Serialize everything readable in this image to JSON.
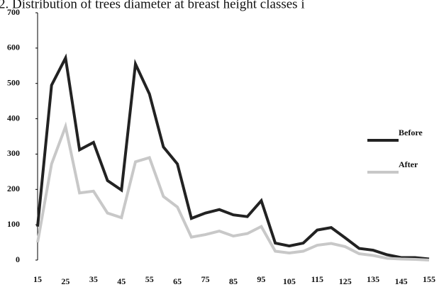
{
  "chart_data": {
    "type": "line",
    "title": "2. Distribution of trees diameter at breast height classes i",
    "x": [
      15,
      20,
      25,
      30,
      35,
      40,
      45,
      50,
      55,
      60,
      65,
      70,
      75,
      80,
      85,
      90,
      95,
      100,
      105,
      110,
      115,
      120,
      125,
      130,
      135,
      140,
      145,
      150,
      155
    ],
    "series": [
      {
        "name": "Before",
        "color": "#222222",
        "values": [
          95,
          495,
          572,
          312,
          333,
          225,
          198,
          555,
          470,
          320,
          272,
          118,
          133,
          143,
          128,
          123,
          168,
          48,
          40,
          48,
          85,
          92,
          63,
          33,
          28,
          15,
          7,
          7,
          3
        ]
      },
      {
        "name": "After",
        "color": "#c8c8c8",
        "values": [
          50,
          272,
          378,
          190,
          195,
          133,
          120,
          278,
          290,
          180,
          150,
          65,
          72,
          82,
          68,
          75,
          95,
          25,
          20,
          25,
          42,
          47,
          38,
          18,
          13,
          5,
          3,
          2,
          0
        ]
      }
    ],
    "xlim": [
      15,
      155
    ],
    "xticks": [
      15,
      25,
      35,
      45,
      55,
      65,
      75,
      85,
      95,
      105,
      115,
      125,
      135,
      145,
      155
    ],
    "ylim": [
      0,
      700
    ],
    "yticks": [
      0,
      100,
      200,
      300,
      400,
      500,
      600,
      700
    ],
    "grid": false,
    "legend": "right"
  }
}
